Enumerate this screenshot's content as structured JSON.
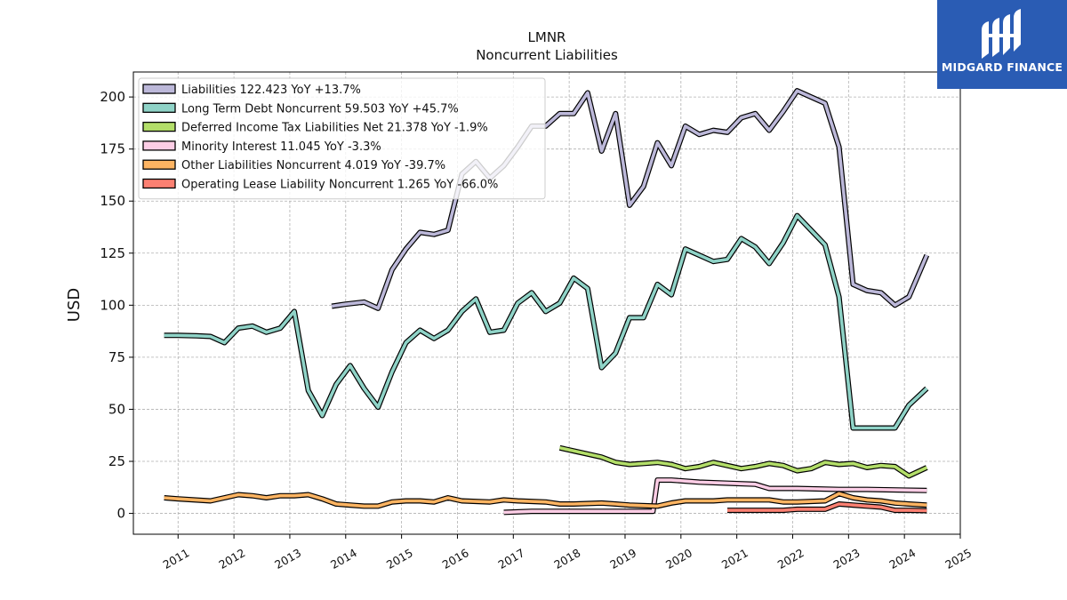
{
  "brand": {
    "name": "MIDGARD FINANCE",
    "bg_color": "#2a5cb4"
  },
  "chart_data": {
    "type": "line",
    "title": "LMNR",
    "subtitle": "Noncurrent  Liabilities",
    "ylabel": "USD",
    "xlabel": "",
    "xlim": [
      2010.2,
      2025.0
    ],
    "ylim": [
      -10,
      212
    ],
    "x_ticks": [
      "2011",
      "2012",
      "2013",
      "2014",
      "2015",
      "2016",
      "2017",
      "2018",
      "2019",
      "2020",
      "2021",
      "2022",
      "2023",
      "2024",
      "2025"
    ],
    "y_ticks": [
      0,
      25,
      50,
      75,
      100,
      125,
      150,
      175,
      200
    ],
    "grid": true,
    "legend_position": "top-left",
    "series": [
      {
        "name": "Liabilities  122.423 YoY +13.7%",
        "color": "#bcb8d9",
        "points": [
          [
            2013.75,
            99.5
          ],
          [
            2014.0,
            100.5
          ],
          [
            2014.33,
            101.5
          ],
          [
            2014.58,
            98.5
          ],
          [
            2014.83,
            117
          ],
          [
            2015.08,
            127
          ],
          [
            2015.33,
            135
          ],
          [
            2015.58,
            134
          ],
          [
            2015.83,
            136
          ],
          [
            2016.08,
            163
          ],
          [
            2016.33,
            169
          ],
          [
            2016.58,
            161
          ],
          [
            2016.83,
            167
          ],
          [
            2017.08,
            176
          ],
          [
            2017.33,
            186
          ],
          [
            2017.58,
            186
          ],
          [
            2017.83,
            192
          ],
          [
            2018.08,
            192
          ],
          [
            2018.33,
            202
          ],
          [
            2018.58,
            174
          ],
          [
            2018.83,
            192
          ],
          [
            2019.08,
            148
          ],
          [
            2019.33,
            157
          ],
          [
            2019.58,
            178
          ],
          [
            2019.83,
            167
          ],
          [
            2020.08,
            186
          ],
          [
            2020.33,
            182
          ],
          [
            2020.58,
            184
          ],
          [
            2020.83,
            183
          ],
          [
            2021.08,
            190
          ],
          [
            2021.33,
            192
          ],
          [
            2021.58,
            184
          ],
          [
            2021.83,
            193
          ],
          [
            2022.08,
            203
          ],
          [
            2022.33,
            200
          ],
          [
            2022.58,
            197
          ],
          [
            2022.83,
            176
          ],
          [
            2023.08,
            110
          ],
          [
            2023.33,
            107
          ],
          [
            2023.58,
            106
          ],
          [
            2023.83,
            100
          ],
          [
            2024.08,
            104
          ],
          [
            2024.4,
            124
          ]
        ]
      },
      {
        "name": "Long Term Debt Noncurrent  59.503 YoY +45.7%",
        "color": "#8fd3c7",
        "points": [
          [
            2010.75,
            85.5
          ],
          [
            2011.0,
            85.5
          ],
          [
            2011.33,
            85.3
          ],
          [
            2011.58,
            85.0
          ],
          [
            2011.83,
            82
          ],
          [
            2012.08,
            89
          ],
          [
            2012.33,
            90
          ],
          [
            2012.58,
            87
          ],
          [
            2012.83,
            89
          ],
          [
            2013.08,
            97
          ],
          [
            2013.33,
            59
          ],
          [
            2013.58,
            47
          ],
          [
            2013.83,
            62
          ],
          [
            2014.08,
            71
          ],
          [
            2014.33,
            60
          ],
          [
            2014.58,
            51
          ],
          [
            2014.83,
            68
          ],
          [
            2015.08,
            82
          ],
          [
            2015.33,
            88
          ],
          [
            2015.58,
            84
          ],
          [
            2015.83,
            88
          ],
          [
            2016.08,
            97
          ],
          [
            2016.33,
            103
          ],
          [
            2016.58,
            87
          ],
          [
            2016.83,
            88
          ],
          [
            2017.08,
            101
          ],
          [
            2017.33,
            106
          ],
          [
            2017.58,
            97
          ],
          [
            2017.83,
            101
          ],
          [
            2018.08,
            113
          ],
          [
            2018.33,
            108
          ],
          [
            2018.58,
            70
          ],
          [
            2018.83,
            77
          ],
          [
            2019.08,
            94
          ],
          [
            2019.33,
            94
          ],
          [
            2019.58,
            110
          ],
          [
            2019.83,
            105
          ],
          [
            2020.08,
            127
          ],
          [
            2020.33,
            124
          ],
          [
            2020.58,
            121
          ],
          [
            2020.83,
            122
          ],
          [
            2021.08,
            132
          ],
          [
            2021.33,
            128
          ],
          [
            2021.58,
            120
          ],
          [
            2021.83,
            130
          ],
          [
            2022.08,
            143
          ],
          [
            2022.33,
            136
          ],
          [
            2022.58,
            129
          ],
          [
            2022.83,
            104
          ],
          [
            2023.08,
            41
          ],
          [
            2023.33,
            41
          ],
          [
            2023.58,
            41
          ],
          [
            2023.83,
            41
          ],
          [
            2024.08,
            52
          ],
          [
            2024.4,
            60
          ]
        ]
      },
      {
        "name": "Deferred Income Tax Liabilities Net  21.378 YoY -1.9%",
        "color": "#b3de69",
        "points": [
          [
            2017.83,
            31.5
          ],
          [
            2018.08,
            30
          ],
          [
            2018.33,
            28.5
          ],
          [
            2018.58,
            27
          ],
          [
            2018.83,
            24.5
          ],
          [
            2019.08,
            23.5
          ],
          [
            2019.33,
            24
          ],
          [
            2019.58,
            24.5
          ],
          [
            2019.83,
            23.5
          ],
          [
            2020.08,
            21.5
          ],
          [
            2020.33,
            22.5
          ],
          [
            2020.58,
            24.5
          ],
          [
            2020.83,
            23
          ],
          [
            2021.08,
            21.5
          ],
          [
            2021.33,
            22.5
          ],
          [
            2021.58,
            24
          ],
          [
            2021.83,
            23
          ],
          [
            2022.08,
            20.5
          ],
          [
            2022.33,
            21.5
          ],
          [
            2022.58,
            24.5
          ],
          [
            2022.83,
            23.5
          ],
          [
            2023.08,
            24
          ],
          [
            2023.33,
            22
          ],
          [
            2023.58,
            23
          ],
          [
            2023.83,
            22.5
          ],
          [
            2024.08,
            18
          ],
          [
            2024.4,
            22
          ]
        ]
      },
      {
        "name": "Minority Interest  11.045 YoY -3.3%",
        "color": "#fccde5",
        "points": [
          [
            2016.83,
            0.5
          ],
          [
            2017.33,
            1
          ],
          [
            2018.33,
            1
          ],
          [
            2019.08,
            1
          ],
          [
            2019.33,
            1
          ],
          [
            2019.5,
            1
          ],
          [
            2019.58,
            16
          ],
          [
            2019.83,
            16
          ],
          [
            2020.33,
            15
          ],
          [
            2020.83,
            14.5
          ],
          [
            2021.33,
            14
          ],
          [
            2021.58,
            12
          ],
          [
            2022.08,
            12
          ],
          [
            2022.83,
            11.5
          ],
          [
            2023.33,
            11.5
          ],
          [
            2024.4,
            11
          ]
        ]
      },
      {
        "name": "Other Liabilities Noncurrent  4.019 YoY -39.7%",
        "color": "#fdb462",
        "points": [
          [
            2010.75,
            7.5
          ],
          [
            2011.0,
            7
          ],
          [
            2011.58,
            6
          ],
          [
            2011.83,
            7.5
          ],
          [
            2012.08,
            9
          ],
          [
            2012.33,
            8.5
          ],
          [
            2012.58,
            7.5
          ],
          [
            2012.83,
            8.5
          ],
          [
            2013.08,
            8.5
          ],
          [
            2013.33,
            9
          ],
          [
            2013.58,
            7
          ],
          [
            2013.83,
            4.5
          ],
          [
            2014.08,
            4
          ],
          [
            2014.33,
            3.5
          ],
          [
            2014.58,
            3.5
          ],
          [
            2014.83,
            5.5
          ],
          [
            2015.08,
            6
          ],
          [
            2015.33,
            6
          ],
          [
            2015.58,
            5.5
          ],
          [
            2015.83,
            7.5
          ],
          [
            2016.08,
            6
          ],
          [
            2016.58,
            5.5
          ],
          [
            2016.83,
            6.5
          ],
          [
            2017.08,
            6
          ],
          [
            2017.58,
            5.5
          ],
          [
            2017.83,
            4.5
          ],
          [
            2018.08,
            4.5
          ],
          [
            2018.58,
            5
          ],
          [
            2018.83,
            4.5
          ],
          [
            2019.08,
            4
          ],
          [
            2019.58,
            3.5
          ],
          [
            2019.83,
            5
          ],
          [
            2020.08,
            6
          ],
          [
            2020.58,
            6
          ],
          [
            2020.83,
            6.5
          ],
          [
            2021.08,
            6.5
          ],
          [
            2021.58,
            6.5
          ],
          [
            2021.83,
            5.5
          ],
          [
            2022.08,
            5.5
          ],
          [
            2022.58,
            6
          ],
          [
            2022.83,
            9.5
          ],
          [
            2023.08,
            7.5
          ],
          [
            2023.33,
            6.5
          ],
          [
            2023.58,
            6
          ],
          [
            2023.83,
            5
          ],
          [
            2024.08,
            4.5
          ],
          [
            2024.4,
            4
          ]
        ]
      },
      {
        "name": "Operating Lease Liability Noncurrent  1.265 YoY -66.0%",
        "color": "#fb8072",
        "points": [
          [
            2020.83,
            1.5
          ],
          [
            2021.08,
            1.5
          ],
          [
            2021.58,
            1.5
          ],
          [
            2021.83,
            1.5
          ],
          [
            2022.08,
            2
          ],
          [
            2022.58,
            2
          ],
          [
            2022.83,
            4.5
          ],
          [
            2023.08,
            4
          ],
          [
            2023.33,
            3.5
          ],
          [
            2023.58,
            3
          ],
          [
            2023.83,
            1.5
          ],
          [
            2024.08,
            1.5
          ],
          [
            2024.4,
            1.3
          ]
        ]
      }
    ]
  }
}
